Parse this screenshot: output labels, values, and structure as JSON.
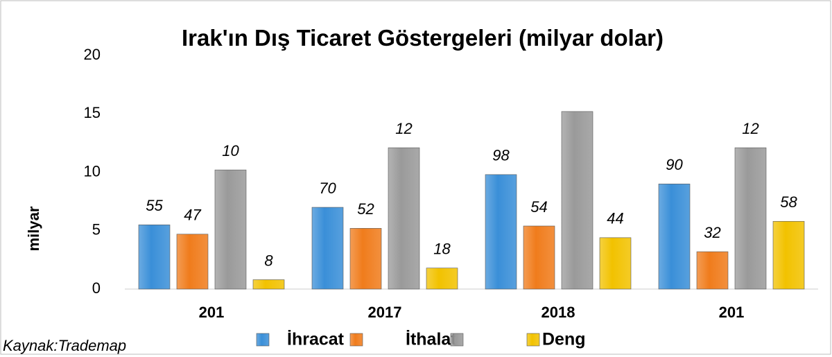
{
  "chart_data": {
    "type": "bar",
    "title": "Irak'ın Dış Ticaret Göstergeleri (milyar dolar)",
    "y_label": "milyar",
    "source": "Kaynak:Trademap",
    "categories": [
      "201",
      "2017",
      "2018",
      "201"
    ],
    "series": [
      {
        "name": "İhracat",
        "color": "#3a8fd8",
        "values": [
          5.5,
          7.0,
          9.8,
          9.0
        ],
        "value_labels": [
          "55",
          "70",
          "98",
          "90"
        ]
      },
      {
        "name": "İthalat",
        "color": "#f07c1c",
        "values": [
          4.7,
          5.2,
          5.4,
          3.2
        ],
        "value_labels": [
          "47",
          "52",
          "54",
          "32"
        ]
      },
      {
        "color": "#9a9a9a",
        "values": [
          10.2,
          12.1,
          15.2,
          12.1
        ],
        "value_labels": [
          "10",
          "12",
          null,
          "12"
        ]
      },
      {
        "name": "Deng",
        "color": "#f2c200",
        "values": [
          0.8,
          1.8,
          4.4,
          5.8
        ],
        "value_labels": [
          "8",
          "18",
          "44",
          "58"
        ]
      }
    ],
    "ylim": [
      0,
      20
    ],
    "yticks": [
      0,
      5,
      10,
      15,
      20
    ],
    "grid": false,
    "legend": "bottom"
  }
}
